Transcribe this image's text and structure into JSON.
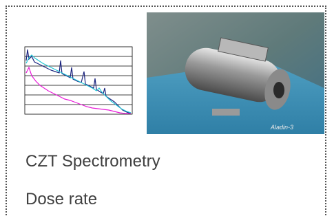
{
  "items": [
    {
      "label": "CZT Spectrometry"
    },
    {
      "label": "Dose rate"
    }
  ],
  "photo": {
    "caption": "Aladin-3"
  }
}
